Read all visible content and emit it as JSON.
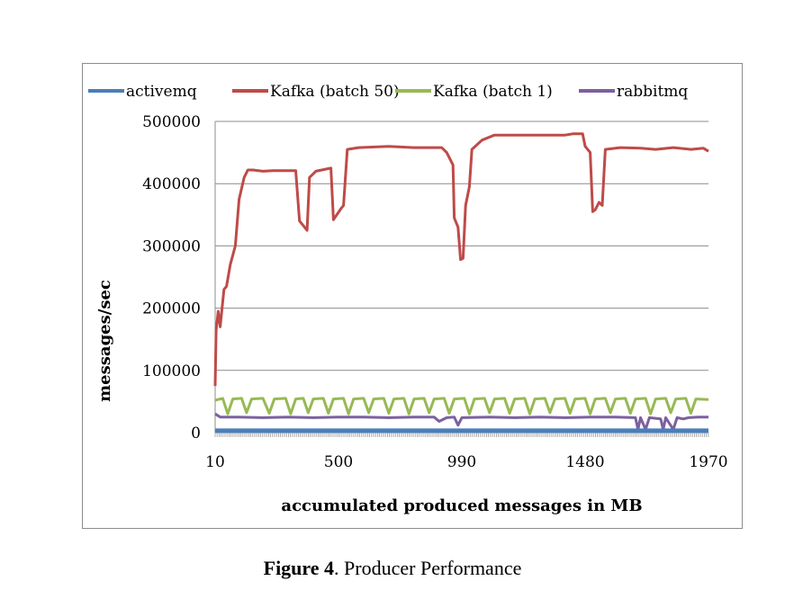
{
  "caption": {
    "label": "Figure 4",
    "text": ". Producer Performance"
  },
  "chart_data": {
    "type": "line",
    "title": "",
    "xlabel": "accumulated produced messages in MB",
    "ylabel": "messages/sec",
    "ylim": [
      0,
      500000
    ],
    "xlim": [
      10,
      1970
    ],
    "yticks": [
      "0",
      "100000",
      "200000",
      "300000",
      "400000",
      "500000"
    ],
    "xticks": [
      {
        "value": 10,
        "label": "10"
      },
      {
        "value": 500,
        "label": "500"
      },
      {
        "value": 990,
        "label": "990"
      },
      {
        "value": 1480,
        "label": "1480"
      },
      {
        "value": 1970,
        "label": "1970"
      }
    ],
    "grid": "horizontal",
    "legend_position": "top",
    "series": [
      {
        "name": "activemq",
        "color": "#4a7ebb",
        "points": [
          [
            10,
            3000
          ],
          [
            500,
            3000
          ],
          [
            990,
            3000
          ],
          [
            1480,
            3000
          ],
          [
            1970,
            3000
          ]
        ]
      },
      {
        "name": "Kafka (batch 50)",
        "color": "#be4b48",
        "points": [
          [
            10,
            75000
          ],
          [
            14,
            165000
          ],
          [
            22,
            195000
          ],
          [
            30,
            170000
          ],
          [
            45,
            230000
          ],
          [
            55,
            235000
          ],
          [
            70,
            270000
          ],
          [
            90,
            300000
          ],
          [
            105,
            375000
          ],
          [
            125,
            410000
          ],
          [
            140,
            422000
          ],
          [
            160,
            422000
          ],
          [
            200,
            420000
          ],
          [
            240,
            421000
          ],
          [
            330,
            421000
          ],
          [
            345,
            340000
          ],
          [
            365,
            330000
          ],
          [
            375,
            325000
          ],
          [
            385,
            410000
          ],
          [
            410,
            420000
          ],
          [
            470,
            425000
          ],
          [
            480,
            342000
          ],
          [
            510,
            360000
          ],
          [
            520,
            365000
          ],
          [
            535,
            455000
          ],
          [
            580,
            458000
          ],
          [
            700,
            460000
          ],
          [
            800,
            458000
          ],
          [
            910,
            458000
          ],
          [
            930,
            450000
          ],
          [
            955,
            430000
          ],
          [
            960,
            345000
          ],
          [
            975,
            330000
          ],
          [
            985,
            278000
          ],
          [
            995,
            280000
          ],
          [
            1005,
            365000
          ],
          [
            1020,
            395000
          ],
          [
            1030,
            455000
          ],
          [
            1070,
            470000
          ],
          [
            1120,
            478000
          ],
          [
            1200,
            478000
          ],
          [
            1300,
            478000
          ],
          [
            1400,
            478000
          ],
          [
            1430,
            480000
          ],
          [
            1470,
            480000
          ],
          [
            1480,
            460000
          ],
          [
            1500,
            450000
          ],
          [
            1510,
            355000
          ],
          [
            1520,
            358000
          ],
          [
            1535,
            370000
          ],
          [
            1548,
            365000
          ],
          [
            1560,
            455000
          ],
          [
            1620,
            458000
          ],
          [
            1700,
            457000
          ],
          [
            1760,
            455000
          ],
          [
            1830,
            458000
          ],
          [
            1900,
            455000
          ],
          [
            1950,
            457000
          ],
          [
            1970,
            452000
          ]
        ]
      },
      {
        "name": "Kafka (batch 1)",
        "color": "#98b954",
        "points": [
          [
            10,
            52000
          ],
          [
            40,
            55000
          ],
          [
            60,
            30000
          ],
          [
            80,
            54000
          ],
          [
            115,
            55000
          ],
          [
            135,
            32000
          ],
          [
            155,
            54000
          ],
          [
            200,
            55000
          ],
          [
            225,
            31000
          ],
          [
            245,
            54000
          ],
          [
            290,
            55000
          ],
          [
            310,
            30000
          ],
          [
            330,
            54000
          ],
          [
            360,
            55000
          ],
          [
            380,
            32000
          ],
          [
            400,
            54000
          ],
          [
            440,
            55000
          ],
          [
            460,
            31000
          ],
          [
            480,
            54000
          ],
          [
            520,
            55000
          ],
          [
            540,
            30000
          ],
          [
            560,
            54000
          ],
          [
            600,
            55000
          ],
          [
            620,
            32000
          ],
          [
            640,
            54000
          ],
          [
            680,
            55000
          ],
          [
            700,
            31000
          ],
          [
            720,
            54000
          ],
          [
            760,
            55000
          ],
          [
            780,
            30000
          ],
          [
            800,
            54000
          ],
          [
            840,
            55000
          ],
          [
            860,
            32000
          ],
          [
            880,
            54000
          ],
          [
            920,
            55000
          ],
          [
            940,
            31000
          ],
          [
            960,
            54000
          ],
          [
            1000,
            55000
          ],
          [
            1020,
            30000
          ],
          [
            1040,
            54000
          ],
          [
            1080,
            55000
          ],
          [
            1100,
            32000
          ],
          [
            1120,
            54000
          ],
          [
            1160,
            55000
          ],
          [
            1180,
            31000
          ],
          [
            1200,
            54000
          ],
          [
            1240,
            55000
          ],
          [
            1260,
            30000
          ],
          [
            1280,
            54000
          ],
          [
            1320,
            55000
          ],
          [
            1340,
            32000
          ],
          [
            1360,
            54000
          ],
          [
            1400,
            55000
          ],
          [
            1420,
            31000
          ],
          [
            1440,
            54000
          ],
          [
            1480,
            55000
          ],
          [
            1500,
            30000
          ],
          [
            1520,
            54000
          ],
          [
            1560,
            55000
          ],
          [
            1580,
            32000
          ],
          [
            1600,
            54000
          ],
          [
            1640,
            55000
          ],
          [
            1660,
            31000
          ],
          [
            1680,
            54000
          ],
          [
            1720,
            55000
          ],
          [
            1740,
            30000
          ],
          [
            1760,
            54000
          ],
          [
            1800,
            55000
          ],
          [
            1820,
            32000
          ],
          [
            1840,
            54000
          ],
          [
            1880,
            55000
          ],
          [
            1900,
            31000
          ],
          [
            1920,
            54000
          ],
          [
            1970,
            53000
          ]
        ]
      },
      {
        "name": "rabbitmq",
        "color": "#7d60a0",
        "points": [
          [
            10,
            30000
          ],
          [
            30,
            25000
          ],
          [
            100,
            25000
          ],
          [
            200,
            24000
          ],
          [
            300,
            25000
          ],
          [
            400,
            24000
          ],
          [
            500,
            25000
          ],
          [
            600,
            25000
          ],
          [
            700,
            24000
          ],
          [
            800,
            25000
          ],
          [
            880,
            25000
          ],
          [
            900,
            18000
          ],
          [
            930,
            24000
          ],
          [
            960,
            25000
          ],
          [
            975,
            12000
          ],
          [
            990,
            24000
          ],
          [
            1100,
            25000
          ],
          [
            1200,
            24000
          ],
          [
            1300,
            25000
          ],
          [
            1400,
            24000
          ],
          [
            1500,
            25000
          ],
          [
            1600,
            25000
          ],
          [
            1680,
            24000
          ],
          [
            1690,
            5000
          ],
          [
            1700,
            24000
          ],
          [
            1720,
            5000
          ],
          [
            1735,
            24000
          ],
          [
            1780,
            22000
          ],
          [
            1790,
            5000
          ],
          [
            1800,
            24000
          ],
          [
            1830,
            5000
          ],
          [
            1845,
            24000
          ],
          [
            1870,
            22000
          ],
          [
            1890,
            24000
          ],
          [
            1930,
            25000
          ],
          [
            1970,
            25000
          ]
        ]
      }
    ]
  }
}
